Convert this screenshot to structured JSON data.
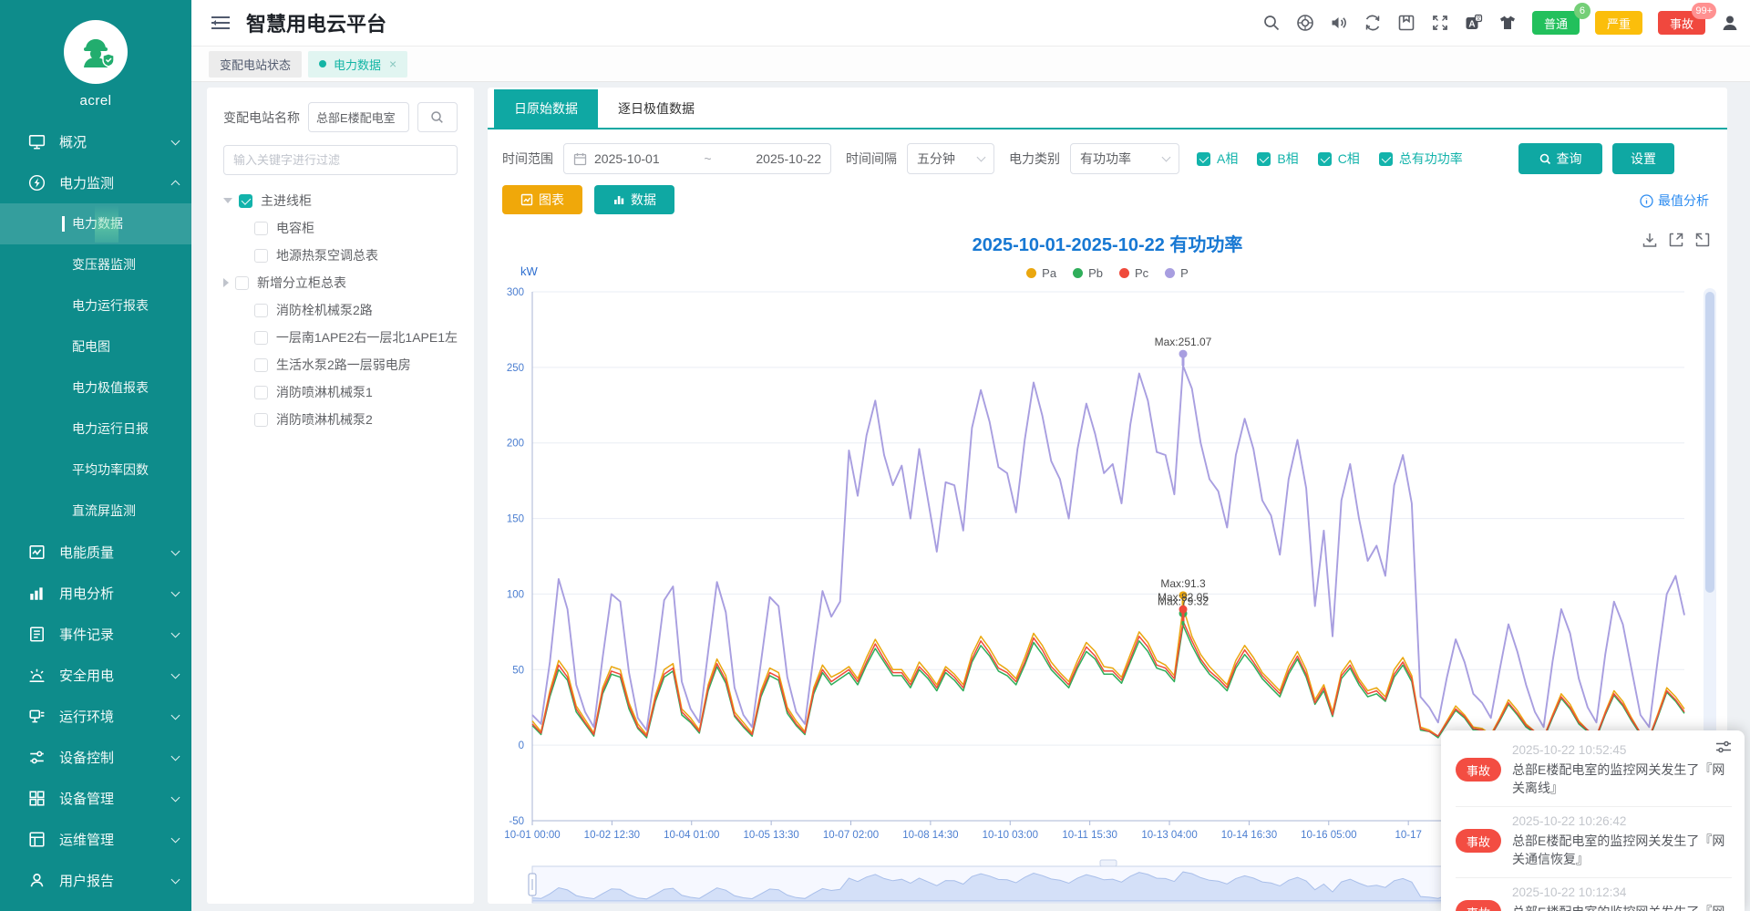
{
  "app": {
    "title": "智慧用电云平台",
    "logo_text": "acrel"
  },
  "colors": {
    "accent_teal": "#0fa8a3",
    "sidebar_teal": "#0e8c8b",
    "warning_orange": "#f0a80a",
    "title_blue": "#1778d3",
    "axis_blue": "#4a7dd0",
    "alert_red": "#f34d42",
    "normal_green": "#22c05c",
    "severe_yellow": "#fbbe0b"
  },
  "header": {
    "icons": [
      "search-icon",
      "help-icon",
      "sound-icon",
      "refresh-icon",
      "save-icon",
      "fullscreen-icon",
      "translate-icon",
      "theme-icon",
      "user-icon"
    ],
    "badges": [
      {
        "label": "普通",
        "count": "6"
      },
      {
        "label": "严重",
        "count": ""
      },
      {
        "label": "事故",
        "count": "99+"
      }
    ]
  },
  "breadcrumb_tabs": [
    {
      "label": "变配电站状态"
    },
    {
      "label": "电力数据",
      "close": "×"
    }
  ],
  "sidebar": {
    "items": [
      {
        "label": "概况",
        "icon": "overview-icon"
      },
      {
        "label": "电力监测",
        "icon": "power-monitor-icon",
        "children": [
          "电力数据",
          "变压器监测",
          "电力运行报表",
          "配电图",
          "电力极值报表",
          "电力运行日报",
          "平均功率因数",
          "直流屏监测"
        ],
        "active_child": "电力数据"
      },
      {
        "label": "电能质量",
        "icon": "power-quality-icon"
      },
      {
        "label": "用电分析",
        "icon": "usage-analysis-icon"
      },
      {
        "label": "事件记录",
        "icon": "event-log-icon"
      },
      {
        "label": "安全用电",
        "icon": "safety-icon"
      },
      {
        "label": "运行环境",
        "icon": "environment-icon"
      },
      {
        "label": "设备控制",
        "icon": "device-control-icon"
      },
      {
        "label": "设备管理",
        "icon": "device-mgmt-icon"
      },
      {
        "label": "运维管理",
        "icon": "ops-mgmt-icon"
      },
      {
        "label": "用户报告",
        "icon": "user-report-icon"
      }
    ]
  },
  "station_panel": {
    "label": "变配电站名称",
    "station_value": "总部E楼配电室",
    "filter_placeholder": "输入关键字进行过滤",
    "tree": {
      "root": {
        "label": "主进线柜",
        "checked": true,
        "expanded": true
      },
      "children": [
        {
          "label": "电容柜"
        },
        {
          "label": "地源热泵空调总表"
        },
        {
          "label": "新增分立柜总表",
          "has_children": true
        },
        {
          "label": "消防栓机械泵2路"
        },
        {
          "label": "一层南1APE2右一层北1APE1左"
        },
        {
          "label": "生活水泵2路一层弱电房"
        },
        {
          "label": "消防喷淋机械泵1"
        },
        {
          "label": "消防喷淋机械泵2"
        }
      ]
    }
  },
  "data_tabs": [
    {
      "label": "日原始数据",
      "active": true
    },
    {
      "label": "逐日极值数据",
      "active": false
    }
  ],
  "filters": {
    "time_range_label": "时间范围",
    "date_start": "2025-10-01",
    "date_separator": "~",
    "date_end": "2025-10-22",
    "interval_label": "时间间隔",
    "interval_value": "五分钟",
    "category_label": "电力类别",
    "category_value": "有功功率",
    "phases": [
      {
        "label": "A相",
        "checked": true
      },
      {
        "label": "B相",
        "checked": true
      },
      {
        "label": "C相",
        "checked": true
      },
      {
        "label": "总有功功率",
        "checked": true
      }
    ],
    "query_button": "查询",
    "settings_button": "设置"
  },
  "view_buttons": {
    "chart": "图表",
    "data": "数据"
  },
  "analysis_link": "最值分析",
  "chart_data": {
    "type": "line",
    "title": "2025-10-01-2025-10-22  有功功率",
    "ylabel": "kW",
    "ylim": [
      -50,
      300
    ],
    "yticks": [
      300,
      250,
      200,
      150,
      100,
      50,
      0,
      -50
    ],
    "grid": true,
    "legend_position": "top",
    "x_tick_labels": [
      "10-01 00:00",
      "10-02 12:30",
      "10-04 01:00",
      "10-05 13:30",
      "10-07 02:00",
      "10-08 14:30",
      "10-10 03:00",
      "10-11 15:30",
      "10-13 04:00",
      "10-14 16:30",
      "10-16 05:00",
      "10-17"
    ],
    "x_tick_fraction_step": 0.069129,
    "x_range_note": "points sampled every 4h from 2025-10-01 00:00 to 2025-10-22 20:00",
    "series": [
      {
        "name": "Pa",
        "color": "#eaa70f",
        "max_label": "Max:91.3",
        "values": [
          16,
          9,
          36,
          56,
          48,
          26,
          17,
          8,
          38,
          52,
          50,
          28,
          14,
          7,
          33,
          50,
          54,
          24,
          18,
          10,
          40,
          57,
          46,
          22,
          15,
          8,
          36,
          51,
          48,
          25,
          16,
          9,
          38,
          53,
          45,
          48,
          52,
          44,
          58,
          70,
          60,
          50,
          50,
          42,
          55,
          48,
          40,
          52,
          47,
          40,
          60,
          72,
          64,
          54,
          50,
          44,
          58,
          74,
          66,
          55,
          48,
          42,
          56,
          68,
          62,
          52,
          51,
          45,
          60,
          75,
          68,
          56,
          53,
          46,
          91.3,
          72,
          60,
          52,
          46,
          40,
          56,
          66,
          58,
          48,
          42,
          36,
          52,
          62,
          50,
          30,
          40,
          22,
          48,
          56,
          44,
          36,
          38,
          32,
          50,
          58,
          46,
          12,
          10,
          6,
          16,
          26,
          20,
          12,
          11,
          7,
          18,
          30,
          23,
          14,
          9,
          5,
          20,
          34,
          27,
          16,
          10,
          6,
          22,
          36,
          29,
          18,
          8,
          5,
          21,
          38,
          32,
          24
        ]
      },
      {
        "name": "Pb",
        "color": "#2fae5a",
        "max_label": "Max:79.32",
        "values": [
          13,
          7,
          32,
          50,
          43,
          22,
          14,
          6,
          34,
          47,
          45,
          24,
          11,
          5,
          29,
          45,
          49,
          20,
          15,
          8,
          36,
          52,
          41,
          19,
          12,
          6,
          32,
          46,
          43,
          21,
          13,
          7,
          34,
          48,
          40,
          44,
          48,
          40,
          53,
          64,
          55,
          46,
          46,
          38,
          50,
          44,
          36,
          48,
          43,
          36,
          55,
          66,
          59,
          49,
          46,
          40,
          53,
          68,
          60,
          50,
          44,
          38,
          51,
          62,
          57,
          47,
          47,
          41,
          55,
          69,
          62,
          51,
          49,
          42,
          79.32,
          66,
          55,
          47,
          42,
          36,
          51,
          60,
          53,
          44,
          38,
          32,
          47,
          57,
          45,
          27,
          36,
          19,
          44,
          51,
          40,
          32,
          34,
          29,
          45,
          53,
          42,
          10,
          9,
          5,
          14,
          23,
          18,
          10,
          10,
          6,
          16,
          27,
          20,
          12,
          8,
          4,
          18,
          31,
          24,
          14,
          9,
          5,
          20,
          33,
          26,
          16,
          7,
          4,
          19,
          35,
          29,
          21
        ]
      },
      {
        "name": "Pc",
        "color": "#ef4a3b",
        "max_label": "Max:82.05",
        "values": [
          14,
          8,
          34,
          53,
          45,
          24,
          15,
          7,
          36,
          49,
          47,
          26,
          12,
          6,
          31,
          47,
          51,
          22,
          16,
          9,
          38,
          54,
          43,
          20,
          13,
          7,
          34,
          48,
          45,
          23,
          14,
          8,
          36,
          50,
          42,
          46,
          50,
          42,
          55,
          67,
          57,
          48,
          48,
          40,
          52,
          46,
          38,
          50,
          45,
          38,
          57,
          69,
          61,
          51,
          48,
          42,
          55,
          71,
          63,
          52,
          46,
          40,
          53,
          65,
          59,
          49,
          49,
          43,
          57,
          72,
          65,
          53,
          51,
          44,
          82.05,
          69,
          57,
          49,
          44,
          38,
          53,
          63,
          55,
          46,
          40,
          34,
          49,
          59,
          47,
          28,
          38,
          20,
          46,
          53,
          42,
          34,
          36,
          30,
          47,
          55,
          44,
          11,
          9,
          6,
          15,
          24,
          19,
          11,
          10,
          6,
          17,
          28,
          21,
          13,
          9,
          5,
          19,
          32,
          25,
          15,
          10,
          6,
          21,
          34,
          27,
          17,
          8,
          5,
          20,
          36,
          30,
          22
        ]
      },
      {
        "name": "P",
        "color": "#a89ee0",
        "max_label": "Max:251.07",
        "values": [
          20,
          14,
          55,
          110,
          90,
          40,
          22,
          12,
          58,
          100,
          95,
          48,
          18,
          10,
          50,
          96,
          105,
          42,
          24,
          15,
          62,
          108,
          88,
          38,
          20,
          12,
          55,
          98,
          92,
          45,
          22,
          14,
          60,
          102,
          85,
          95,
          195,
          165,
          205,
          228,
          192,
          172,
          185,
          150,
          196,
          162,
          128,
          174,
          172,
          142,
          210,
          235,
          214,
          184,
          180,
          154,
          202,
          240,
          218,
          188,
          176,
          150,
          196,
          226,
          206,
          180,
          186,
          160,
          212,
          246,
          228,
          194,
          192,
          166,
          251.07,
          236,
          200,
          176,
          168,
          144,
          192,
          216,
          196,
          162,
          152,
          126,
          176,
          202,
          170,
          92,
          142,
          72,
          162,
          186,
          150,
          122,
          132,
          112,
          172,
          192,
          160,
          32,
          25,
          15,
          45,
          70,
          55,
          34,
          28,
          18,
          50,
          80,
          62,
          40,
          22,
          12,
          55,
          90,
          74,
          44,
          25,
          15,
          60,
          95,
          80,
          50,
          20,
          12,
          58,
          100,
          112,
          86
        ]
      }
    ]
  },
  "notifications": {
    "items": [
      {
        "badge": "事故",
        "time": "2025-10-22 10:52:45",
        "message": "总部E楼配电室的监控网关发生了『网关离线』"
      },
      {
        "badge": "事故",
        "time": "2025-10-22 10:26:42",
        "message": "总部E楼配电室的监控网关发生了『网关通信恢复』"
      },
      {
        "badge": "事故",
        "time": "2025-10-22 10:12:34",
        "message": "总部E楼配电室的监控网关发生了『网关离线』"
      }
    ]
  }
}
